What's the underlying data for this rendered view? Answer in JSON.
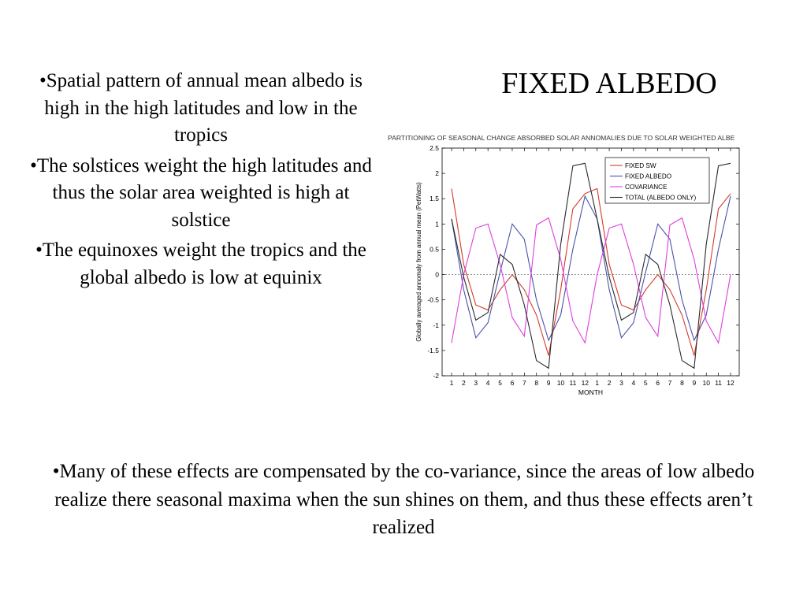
{
  "slide": {
    "title": "FIXED ALBEDO",
    "bullets": [
      "•Spatial pattern of annual mean albedo is high in the high latitudes and low in the tropics",
      "•The solstices weight the high latitudes and thus the solar area weighted is high at solstice",
      "•The equinoxes weight the tropics and the global albedo is low at equinix"
    ],
    "footer": "•Many of these effects are compensated by the co-variance, since the areas of low albedo realize there seasonal maxima when the sun shines on them, and thus these effects aren’t realized"
  },
  "chart_data": {
    "type": "line",
    "title": "PARTITIONING OF SEASONAL CHANGE ABSORBED SOLAR ANNOMALIES DUE TO SOLAR WEIGHTED ALBE",
    "xlabel": "MONTH",
    "ylabel": "Globally averaged annomaly from annual mean (PetWatts)",
    "categories": [
      "1",
      "2",
      "3",
      "4",
      "5",
      "6",
      "7",
      "8",
      "9",
      "10",
      "11",
      "12",
      "1",
      "2",
      "3",
      "4",
      "5",
      "6",
      "7",
      "8",
      "9",
      "10",
      "11",
      "12"
    ],
    "yticks": [
      "-2",
      "-1.5",
      "-1",
      "-0.5",
      "0",
      "0.5",
      "1",
      "1.5",
      "2",
      "2.5"
    ],
    "ylim": [
      -2,
      2.5
    ],
    "zero_line": true,
    "legend_position": "top-right",
    "series": [
      {
        "name": "FIXED SW",
        "color": "#d23c2a",
        "values": [
          1.7,
          0.2,
          -0.6,
          -0.7,
          -0.3,
          0.0,
          -0.3,
          -0.8,
          -1.6,
          -0.3,
          1.3,
          1.6,
          1.7,
          0.2,
          -0.6,
          -0.7,
          -0.3,
          0.0,
          -0.3,
          -0.8,
          -1.6,
          -0.3,
          1.3,
          1.6
        ]
      },
      {
        "name": "FIXED ALBEDO",
        "color": "#4a52a8",
        "values": [
          1.1,
          -0.3,
          -1.25,
          -0.95,
          0.05,
          1.0,
          0.7,
          -0.5,
          -1.3,
          -0.8,
          0.5,
          1.55,
          1.1,
          -0.3,
          -1.25,
          -0.95,
          0.05,
          1.0,
          0.7,
          -0.5,
          -1.3,
          -0.8,
          0.5,
          1.55
        ]
      },
      {
        "name": "COVARIANCE",
        "color": "#de3fde",
        "values": [
          -1.35,
          0.0,
          0.92,
          1.0,
          0.2,
          -0.85,
          -1.22,
          0.98,
          1.12,
          0.3,
          -0.92,
          -1.35,
          0.0,
          0.92,
          1.0,
          0.2,
          -0.85,
          -1.22,
          0.98,
          1.12,
          0.3,
          -0.92,
          -1.35,
          0.0
        ]
      },
      {
        "name": "TOTAL (ALBEDO ONLY)",
        "color": "#2a2a2a",
        "values": [
          1.1,
          -0.05,
          -0.9,
          -0.75,
          0.4,
          0.2,
          -0.6,
          -1.7,
          -1.85,
          0.6,
          2.15,
          2.2,
          1.1,
          -0.05,
          -0.9,
          -0.75,
          0.4,
          0.2,
          -0.6,
          -1.7,
          -1.85,
          0.6,
          2.15,
          2.2
        ]
      }
    ]
  }
}
